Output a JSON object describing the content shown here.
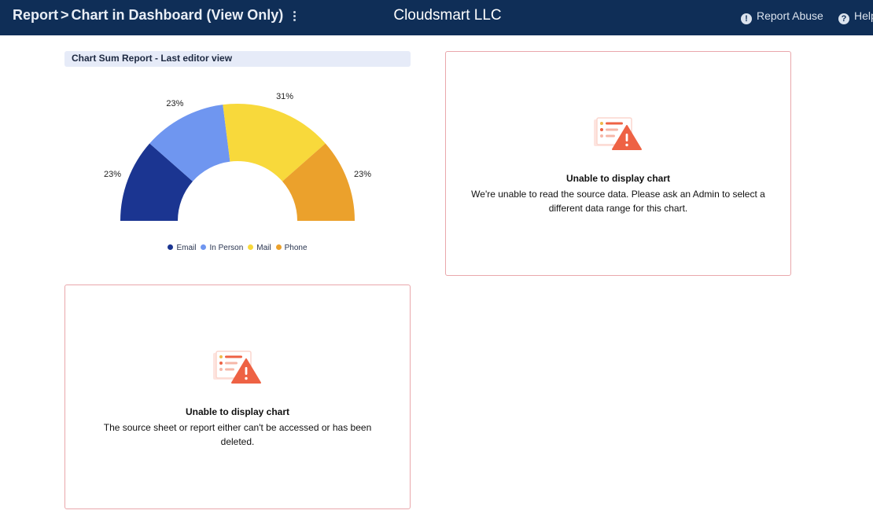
{
  "header": {
    "breadcrumb_root": "Report",
    "breadcrumb_sep": ">",
    "breadcrumb_page": "Chart in Dashboard (View Only)",
    "app_title": "Cloudsmart LLC",
    "report_abuse": "Report Abuse",
    "help": "Help",
    "more_icon": "vertical-ellipsis-icon",
    "abuse_icon": "exclamation-circle-icon",
    "help_icon": "question-circle-icon"
  },
  "chart_widget": {
    "title": "Chart Sum Report - Last editor view"
  },
  "chart_data": {
    "type": "pie",
    "variant": "half-donut",
    "categories": [
      "Email",
      "In Person",
      "Mail",
      "Phone"
    ],
    "values": [
      23,
      23,
      31,
      23
    ],
    "labels": [
      "23%",
      "23%",
      "31%",
      "23%"
    ],
    "colors": [
      "#1b3591",
      "#6f96f0",
      "#f8d93b",
      "#eba12c"
    ],
    "legend_position": "bottom"
  },
  "error_card_1": {
    "title": "Unable to display chart",
    "message": "We're unable to read the source data. Please ask an Admin to select a different data range for this chart.",
    "icon": "chart-warning-icon"
  },
  "error_card_2": {
    "title": "Unable to display chart",
    "message": "The source sheet or report either can't be accessed or has been deleted.",
    "icon": "chart-warning-icon"
  },
  "colors": {
    "topbar": "#0f2e57",
    "card_border": "#e9a7ab",
    "warning": "#ee6244"
  }
}
